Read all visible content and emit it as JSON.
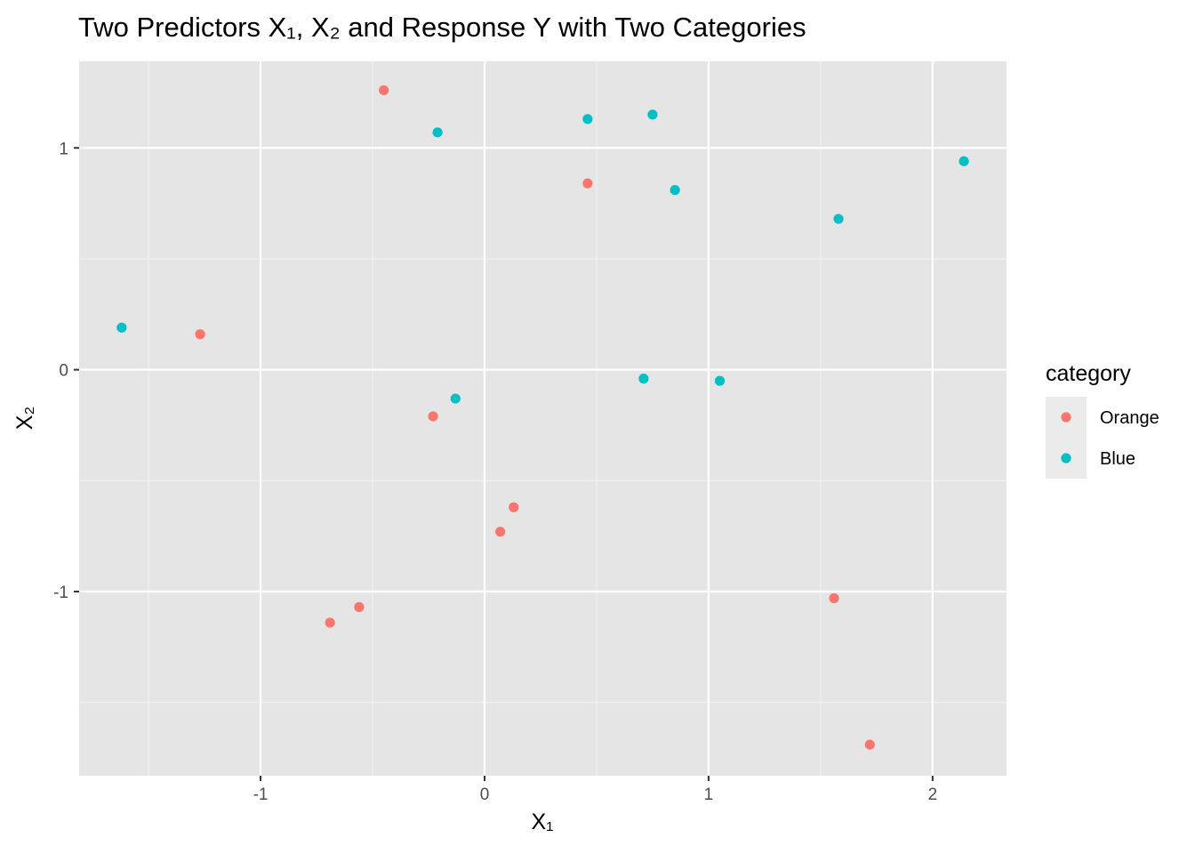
{
  "chart_data": {
    "type": "scatter",
    "title": "Two Predictors X₁, X₂ and Response Y with Two Categories",
    "xlabel": "X₁",
    "ylabel": "X₂",
    "xlim": [
      -1.81,
      2.33
    ],
    "ylim": [
      -1.83,
      1.39
    ],
    "x_ticks": [
      -1,
      0,
      1,
      2
    ],
    "y_ticks": [
      -1,
      0,
      1
    ],
    "x_tick_labels": [
      "-1",
      "0",
      "1",
      "2"
    ],
    "y_tick_labels": [
      "-1",
      "0",
      "1"
    ],
    "grid": true,
    "background": "#e5e5e5",
    "legend": {
      "title": "category",
      "placement": "right"
    },
    "series": [
      {
        "name": "Orange",
        "color": "#f8766d",
        "points": [
          {
            "x": -0.45,
            "y": 1.26
          },
          {
            "x": 0.46,
            "y": 0.84
          },
          {
            "x": -1.27,
            "y": 0.16
          },
          {
            "x": -0.23,
            "y": -0.21
          },
          {
            "x": 0.13,
            "y": -0.62
          },
          {
            "x": 0.07,
            "y": -0.73
          },
          {
            "x": -0.56,
            "y": -1.07
          },
          {
            "x": -0.69,
            "y": -1.14
          },
          {
            "x": 1.56,
            "y": -1.03
          },
          {
            "x": 1.72,
            "y": -1.69
          }
        ]
      },
      {
        "name": "Blue",
        "color": "#00bfc4",
        "points": [
          {
            "x": -0.21,
            "y": 1.07
          },
          {
            "x": 0.46,
            "y": 1.13
          },
          {
            "x": 0.75,
            "y": 1.15
          },
          {
            "x": 0.85,
            "y": 0.81
          },
          {
            "x": 1.58,
            "y": 0.68
          },
          {
            "x": 2.14,
            "y": 0.94
          },
          {
            "x": -1.62,
            "y": 0.19
          },
          {
            "x": -0.13,
            "y": -0.13
          },
          {
            "x": 0.71,
            "y": -0.04
          },
          {
            "x": 1.05,
            "y": -0.05
          }
        ]
      }
    ]
  }
}
